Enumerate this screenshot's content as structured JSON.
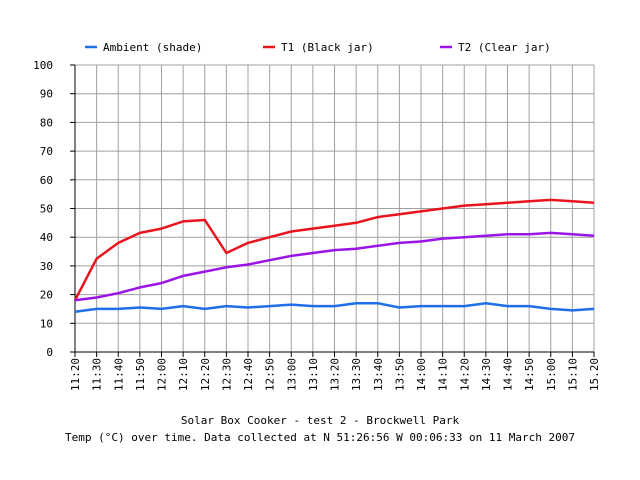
{
  "chart_data": {
    "type": "line",
    "title": "Solar Box Cooker - test 2 - Brockwell Park",
    "subtitle": "Temp (°C) over time. Data collected at N 51:26:56 W 00:06:33 on 11 March 2007",
    "x": [
      "11:20",
      "11:30",
      "11:40",
      "11:50",
      "12:00",
      "12:10",
      "12:20",
      "12:30",
      "12:40",
      "12:50",
      "13:00",
      "13:10",
      "13:20",
      "13:30",
      "13:40",
      "13:50",
      "14:00",
      "14:10",
      "14:20",
      "14:30",
      "14:40",
      "14:50",
      "15:00",
      "15:10",
      "15.20"
    ],
    "ylim": [
      0,
      100
    ],
    "yticks": [
      0,
      10,
      20,
      30,
      40,
      50,
      60,
      70,
      80,
      90,
      100
    ],
    "grid": true,
    "legend_position": "top",
    "series": [
      {
        "name": "Ambient (shade)",
        "color": "#1f6fe8",
        "values": [
          14,
          15,
          15,
          15.5,
          15,
          16,
          15,
          16,
          15.5,
          16,
          16.5,
          16,
          16,
          17,
          17,
          15.5,
          16,
          16,
          16,
          17,
          16,
          16,
          15,
          14.5,
          15
        ]
      },
      {
        "name": "T1 (Black jar)",
        "color": "#e8141e",
        "values": [
          18,
          32.5,
          38,
          41.5,
          43,
          45.5,
          46,
          34.5,
          38,
          40,
          42,
          43,
          44,
          45,
          47,
          48,
          49,
          50,
          51,
          51.5,
          52,
          52.5,
          53,
          52.5,
          52
        ]
      },
      {
        "name": "T2 (Clear jar)",
        "color": "#9b14e8",
        "values": [
          18,
          19,
          20.5,
          22.5,
          24,
          26.5,
          28,
          29.5,
          30.5,
          32,
          33.5,
          34.5,
          35.5,
          36,
          37,
          38,
          38.5,
          39.5,
          40,
          40.5,
          41,
          41,
          41.5,
          41,
          40.5
        ]
      }
    ]
  }
}
